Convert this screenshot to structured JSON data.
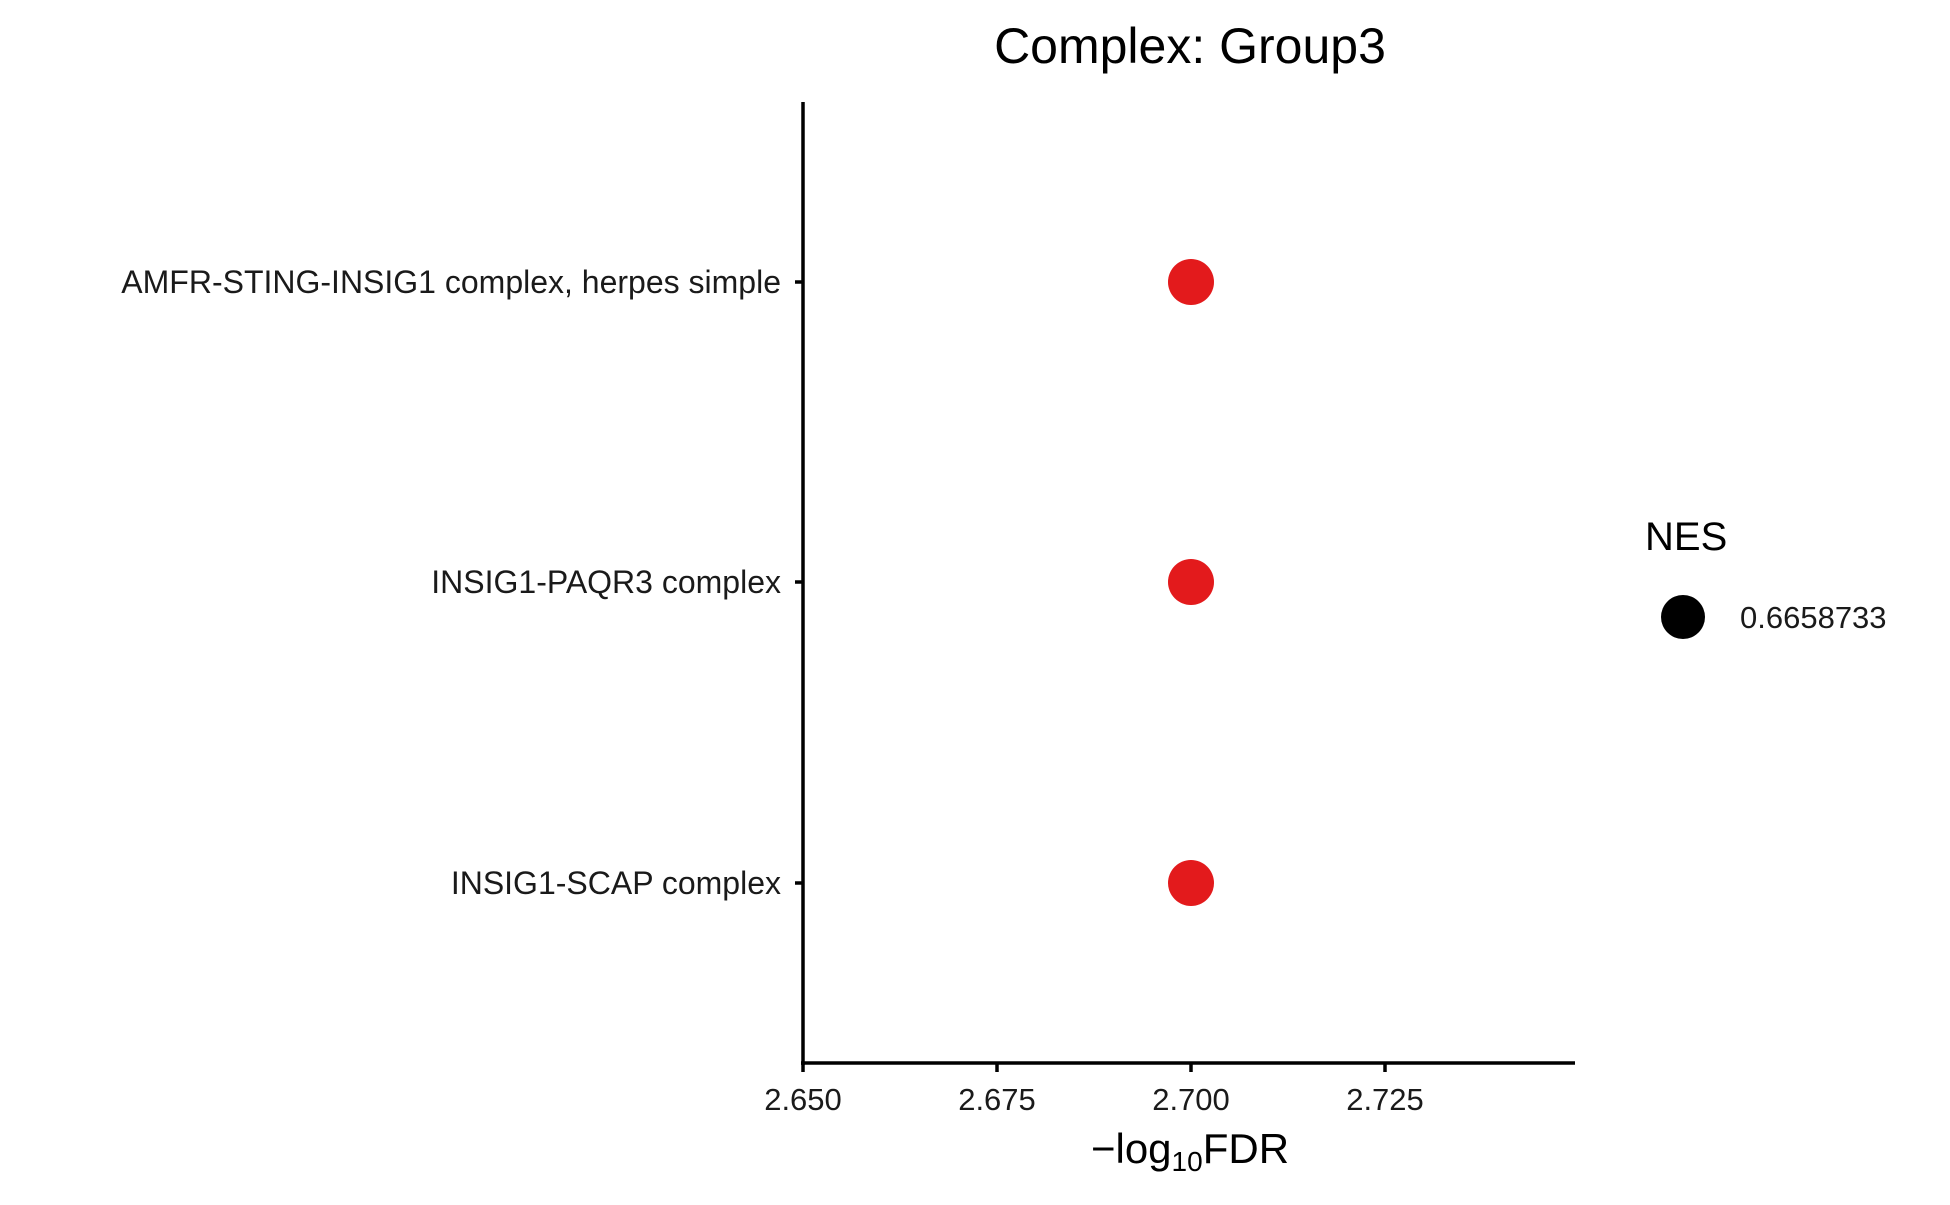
{
  "chart_data": {
    "type": "scatter",
    "title": "Complex: Group3",
    "xlabel": {
      "prefix": "−log",
      "subscript": "10",
      "suffix": "FDR"
    },
    "ylabel": "",
    "xlim": [
      2.65,
      2.75
    ],
    "xticks": [
      "2.650",
      "2.675",
      "2.700",
      "2.725"
    ],
    "xtick_values": [
      2.65,
      2.675,
      2.7,
      2.725
    ],
    "categories": [
      "AMFR-STING-INSIG1 complex, herpes simple",
      "INSIG1-PAQR3 complex",
      "INSIG1-SCAP complex"
    ],
    "points": [
      {
        "category": "AMFR-STING-INSIG1 complex, herpes simple",
        "x": 2.7,
        "nes": 0.6658733
      },
      {
        "category": "INSIG1-PAQR3 complex",
        "x": 2.7,
        "nes": 0.6658733
      },
      {
        "category": "INSIG1-SCAP complex",
        "x": 2.7,
        "nes": 0.6658733
      }
    ],
    "point_color": "#e31a1c",
    "legend": {
      "title": "NES",
      "entries": [
        "0.6658733"
      ],
      "marker_color": "#000000",
      "position": "right"
    },
    "grid": false
  }
}
